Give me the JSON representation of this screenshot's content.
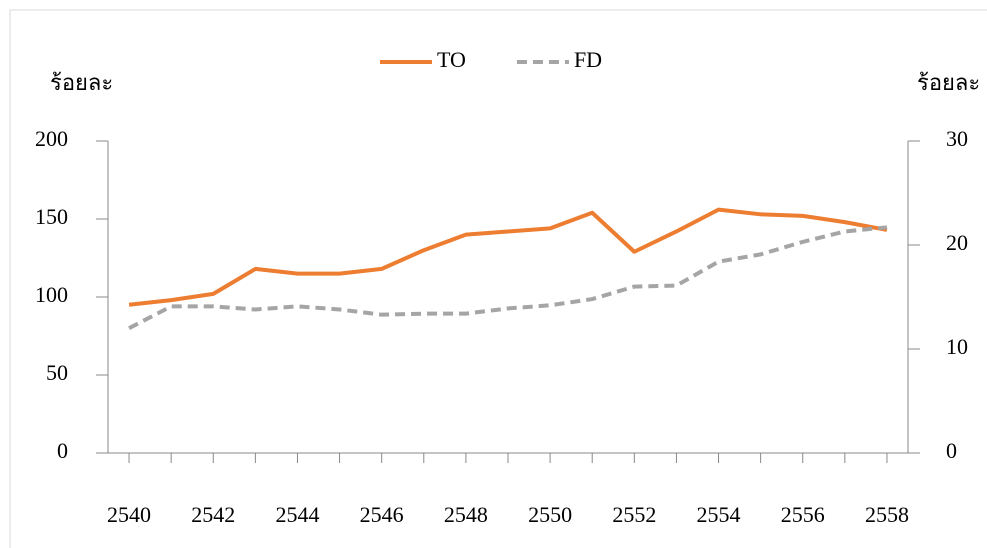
{
  "chart_data": {
    "type": "line",
    "categories": [
      "2540",
      null,
      "2542",
      null,
      "2544",
      null,
      "2546",
      null,
      "2548",
      null,
      "2550",
      null,
      "2552",
      null,
      "2554",
      null,
      "2556",
      null,
      "2558"
    ],
    "series": [
      {
        "name": "TO",
        "color": "#ed7d31",
        "dash": false,
        "axis": "y",
        "values": [
          95,
          98,
          102,
          118,
          115,
          115,
          118,
          130,
          140,
          142,
          144,
          154,
          129,
          142,
          156,
          153,
          152,
          148,
          143
        ]
      },
      {
        "name": "FD",
        "color": "#a5a5a5",
        "dash": true,
        "axis": "y2",
        "values": [
          12.0,
          14.1,
          14.1,
          13.8,
          14.1,
          13.8,
          13.3,
          13.4,
          13.4,
          13.9,
          14.2,
          14.8,
          16.0,
          16.1,
          18.4,
          19.1,
          20.3,
          21.3,
          21.7
        ]
      }
    ],
    "ylabel": "ร้อยละ",
    "y2label": "ร้อยละ",
    "ylim": [
      0,
      200
    ],
    "yticks": [
      0,
      50,
      100,
      150,
      200
    ],
    "y2lim": [
      0,
      30
    ],
    "y2ticks": [
      0,
      10,
      20,
      30
    ],
    "legend": "top"
  }
}
